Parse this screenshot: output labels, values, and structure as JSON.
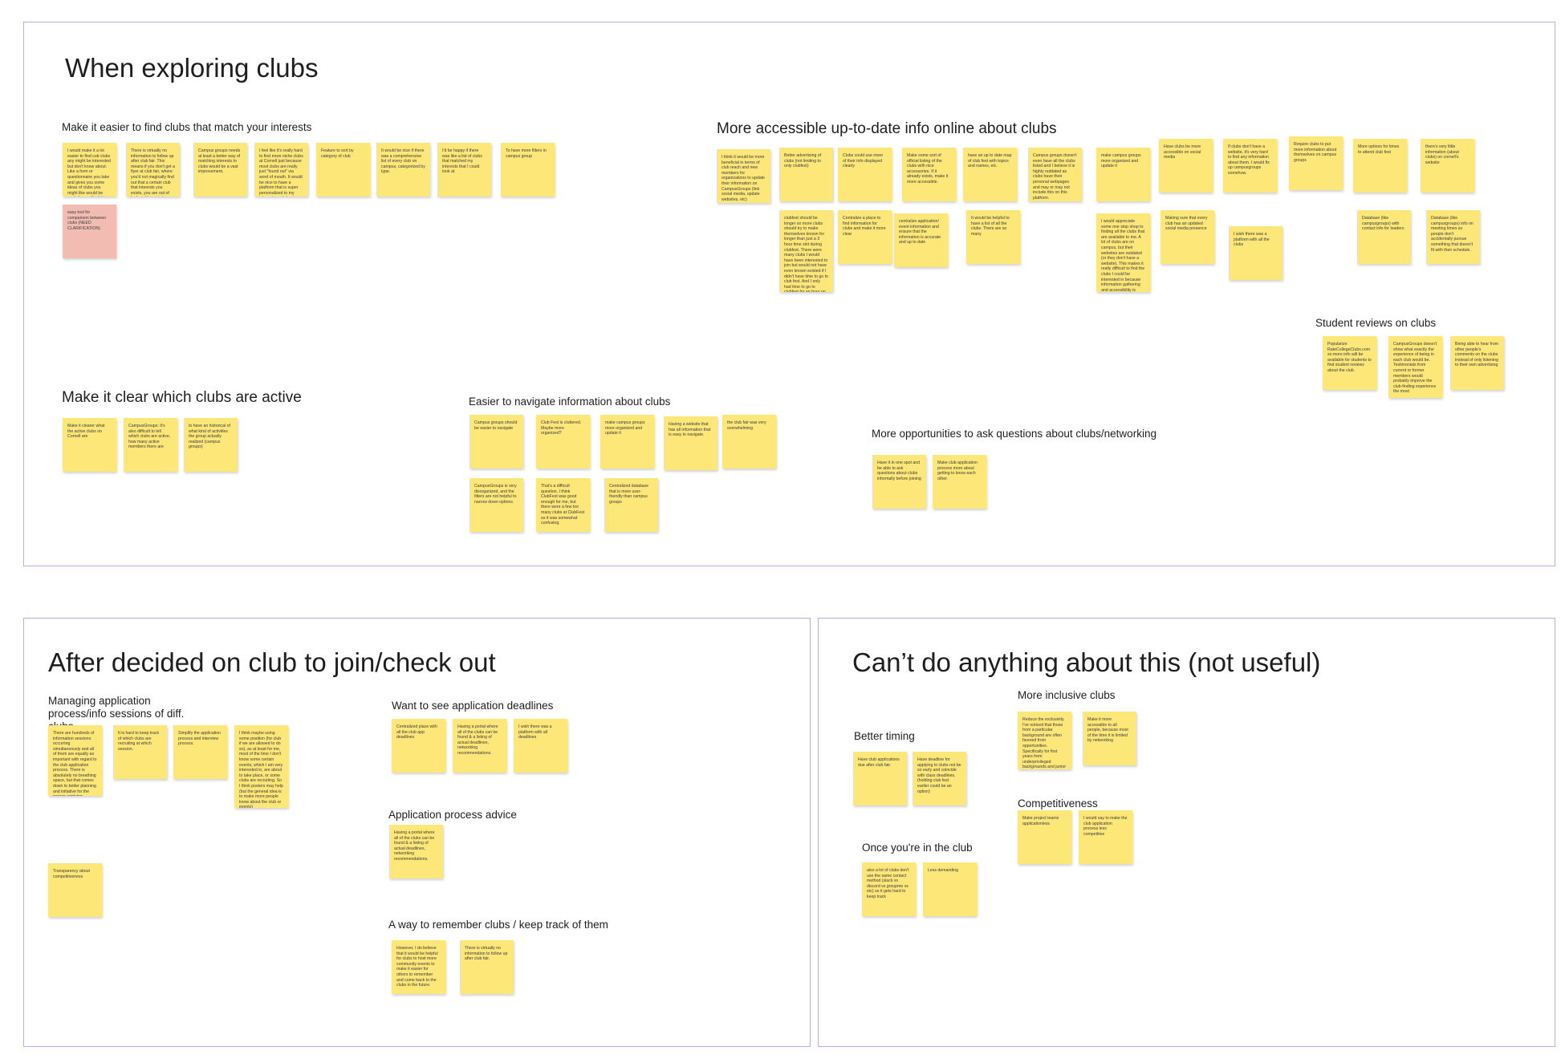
{
  "sections": {
    "exploring": {
      "title": "When exploring clubs",
      "groups": {
        "find_interests": {
          "label": "Make it easier to find clubs that match your interests",
          "notes": [
            "I would make it a lot easier to find cub clubs any might be interested but don't know about. Like a form or questionnaire you take and gives you some ideas of clubs you might like would be cool along with club feed.",
            "easy tool for comparison between clubs (NEED CLARIFICATION)",
            "There is virtually no information to follow up after club fair. This means if you don't get a flyer at club fair, where you'd not magically find out that a certain club that interests you exists, you are out of luck and have to try again next semester. Rinse and repeat. You don't end up every realizing there are clubs that may pique your interest.",
            "Campus groups needs at least a better way of matching interests to clubs would be a vast improvement.",
            "I feel like it's really hard to find more niche clubs at Cornell just because most clubs are really just \"found out\" via word of mouth. It would be nice to have a platform that is super personalized to my interests and also is nice and pretty to interact with that could show me a consolidated version of clubs I may be interested in!",
            "Feature to sort by category of club",
            "It would be nice if there was a comprehensive list of every club on campus, categorized by type.",
            "I'd be happy if there was like a list of clubs that matched my interests that I could look at",
            "To have more filters in campus group"
          ]
        },
        "accessible_info": {
          "label": "More accessible up-to-date info online about clubs",
          "notes": [
            "I think it would be more beneficial in terms of club reach and new members for organizations to update their information on CampusGroups (link social media, update websites, etc)",
            "Better advertising of clubs (not limiting to only clubfest)",
            "Clubs could use more of their info displayed clearly",
            "Make some sort of official listing of the clubs with nice accessories. If it already exists, make it more accessible.",
            "have an up to date map of club fest with topics and names, etc.",
            "Campus groups doesn't even have all the clubs listed and I believe it is highly outdated as clubs have their personal webpages and may or may not include this on this platform.",
            "make campus groups more organized and update it",
            "Have clubs be more accessible on social media",
            "If clubs don't have a website, it's very hard to find any information about them. I would fix up campusgroups somehow.",
            "Require clubs to put more information about themselves on campus groups",
            "More options for times to attend club fest",
            "there's very little information (about clubs) on cornell's website",
            "clubfest should be longer so more clubs should try to make themselves known for longer than just a 3 hour time slot during clubfest. There were many clubs I would have been interested to join but would not have even known existed if I didn't have time to go to club fest. And I only had time to go to clubfest for an hour on one day.",
            "Centralize a place to find information for clubs and make it more clear",
            "centralize application/ event information and ensure that the information is accurate and up to date",
            "It would be helpful to have a list of all the clubs. There are so many",
            "I would appreciate some one stop shop to finding all the clubs that are available to me. A lot of clubs are on campus, but their websites are outdated (or they don't have a website). This makes it really difficult to find the clubs I could be interested in because information gathering and accessibility is hard.",
            "Making sure that every club has an updated social media presence",
            "I wish there was a platform with all the clubs",
            "Database (like campusgroups) with contact info for leaders",
            "Database (like campusgroups) info on meeting times so people don't accidentally pursue something that doesn't fit with their schedule."
          ]
        },
        "reviews": {
          "label": "Student reviews on clubs",
          "notes": [
            "Popularize RateCollegeClubs.com so more info will be available for students to find student reviews about the club.",
            "CampusGroups doesn't show what exactly the experience of being in each club would be. Testimonials from current or former members would probably improve the club-finding experience the most",
            "Being able to hear from other people's comments on the clubs instead of only listening to their own advertising"
          ]
        },
        "active": {
          "label": "Make it clear which clubs are active",
          "notes": [
            "Make it clearer what the active clubs on Cornell are",
            "CampusGroups: It's also difficult to tell which clubs are active, how many active members there are",
            "to have an historical of what kind of activities the group actually realized (campus groups)"
          ]
        },
        "navigate": {
          "label": "Easier to navigate information about clubs",
          "notes": [
            "Campus groups should be easier to navigate",
            "Club Fest is cluttered. Maybe more organized?",
            "make campus groups more organized and update it",
            "Having a website that has all information that is easy to navigate.",
            "the club fair was very overwhelming",
            "CampusGroups is very disorganized, and the filters are not helpful to narrow down options.",
            "That's a difficult question. I think ClubFest was good enough for me, but there were a few too many clubs at ClubFest so it was somewhat confusing.",
            "Centralized database that is more user-friendly than campus groups"
          ]
        },
        "questions": {
          "label": "More opportunities to ask questions about clubs/networking",
          "notes": [
            "Have it in one spot and be able to ask questions about clubs informally before joining",
            "Make club application process more about getting to know each other."
          ]
        }
      }
    },
    "after": {
      "title": "After decided on club to join/check out",
      "groups": {
        "managing": {
          "label": "Managing application process/info sessions of diff. clubs",
          "notes": [
            "There are hundreds of information sessions occurring simultaneously and all of them are equally as important with regard to the club application process. There is absolutely no breathing space, but that comes down to better planning and initiative for the person applying",
            "It is hard to keep track of which clubs are recruiting at which session.",
            "Simplify the application process and interview process.",
            "I think maybe using some position (for club if we are allowed to do so), as at least for me, most of the time I don't know some certain events, which I am very interested in, are about to take place, or some clubs are recruiting. So I think posters may help (but the general idea is to make more people know about the club or events)",
            "Transparency about competitiveness"
          ]
        },
        "deadlines": {
          "label": "Want to see application deadlines",
          "notes": [
            "Centralized place with all the club app deadlines",
            "Having a portal where all of the clubs can be found & a listing of actual deadlines, networking recommendations.",
            "I wish there was a platform with all deadlines"
          ]
        },
        "advice": {
          "label": "Application process advice",
          "notes": [
            "Having a portal where all of the clubs can be found & a listing of actual deadlines, networking recommendations."
          ]
        },
        "remember": {
          "label": "A way to remember clubs / keep track of them",
          "notes": [
            "However, I do believe that it would be helpful for clubs to host more community events to make it easier for others to remember and come back to the clubs in the future.",
            "There is virtually no information to follow up after club fair."
          ]
        }
      }
    },
    "cant": {
      "title": "Can’t do anything about this (not useful)",
      "groups": {
        "timing": {
          "label": "Better timing",
          "notes": [
            "Have club applications due after club fair.",
            "Have deadline for applying to clubs not be so early and coincide with class deadlines. (holding club fest earlier could be an option)"
          ]
        },
        "inclusive": {
          "label": "More inclusive clubs",
          "notes": [
            "Reduce the exclusivity. I've noticed that those from a particular background are often favored from opportunities. Specifically for first years from underprivileged backgrounds and junior transfers.",
            "Make it more accessible to all people, because most of the time it is limited by networking"
          ]
        },
        "competitive": {
          "label": "Competitiveness",
          "notes": [
            "Make project teams applicationless",
            "I would say to make the club application process less competitive"
          ]
        },
        "inclub": {
          "label": "Once you're in the club",
          "notes": [
            "also a lot of clubs don't use the same contact method (slack vs discord vs groupme vs etc) so it gets hard to keep track",
            "Less demanding"
          ]
        }
      }
    }
  },
  "colors": {
    "sticky": "#fde779",
    "sticky_flagged": "#f3bcb3",
    "frame_border": "#c9a6e3"
  }
}
